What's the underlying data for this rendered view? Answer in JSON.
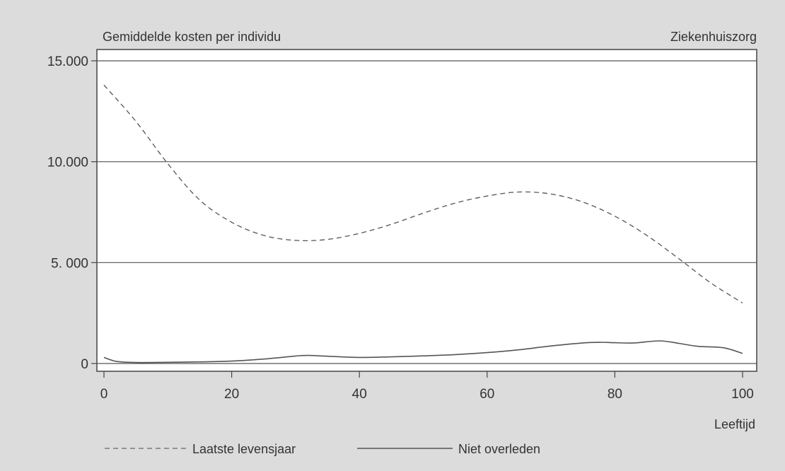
{
  "chart_data": {
    "type": "line",
    "title_left": "Gemiddelde kosten per individu",
    "title_right": "Ziekenhuiszorg",
    "xlabel": "Leeftijd",
    "ylabel": "",
    "xlim": [
      0,
      100
    ],
    "ylim": [
      0,
      15000
    ],
    "xticks": [
      0,
      20,
      40,
      60,
      80,
      100
    ],
    "xtick_labels": [
      "0",
      "20",
      "40",
      "60",
      "80",
      "100"
    ],
    "yticks": [
      0,
      5000,
      10000,
      15000
    ],
    "ytick_labels": [
      "0",
      "5. 000",
      "10.000",
      "15.000"
    ],
    "grid": "horizontal",
    "legend_position": "bottom",
    "series": [
      {
        "name": "Laatste levensjaar",
        "style": "dashed",
        "color": "#555555",
        "x": [
          0,
          5,
          10,
          15,
          20,
          25,
          30,
          35,
          40,
          45,
          50,
          55,
          60,
          65,
          70,
          75,
          80,
          85,
          90,
          95,
          100
        ],
        "y": [
          13800,
          12000,
          9900,
          8100,
          7000,
          6350,
          6100,
          6150,
          6450,
          6900,
          7450,
          7950,
          8300,
          8500,
          8400,
          8000,
          7300,
          6350,
          5200,
          4000,
          3000
        ]
      },
      {
        "name": "Niet overleden",
        "style": "solid",
        "color": "#555555",
        "x": [
          0,
          2,
          5,
          10,
          15,
          20,
          25,
          30,
          32,
          35,
          40,
          45,
          50,
          55,
          60,
          65,
          70,
          75,
          78,
          80,
          83,
          87,
          90,
          93,
          97,
          100
        ],
        "y": [
          300,
          100,
          50,
          60,
          80,
          120,
          220,
          370,
          400,
          360,
          300,
          330,
          380,
          440,
          540,
          680,
          870,
          1020,
          1050,
          1030,
          1020,
          1120,
          1000,
          850,
          780,
          500
        ]
      }
    ]
  }
}
